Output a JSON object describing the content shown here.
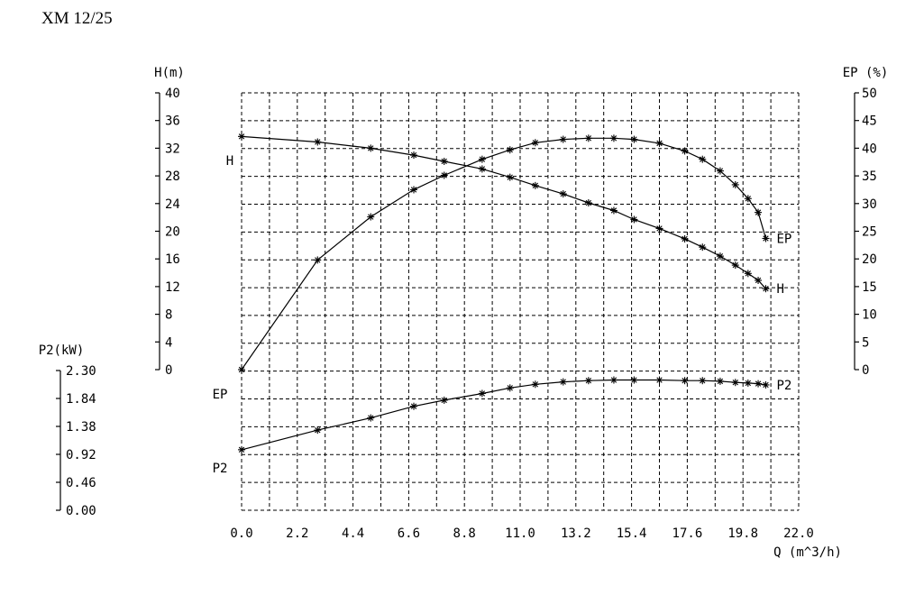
{
  "title": "XM 12/25",
  "chart_data": {
    "type": "line",
    "title": "XM 12/25",
    "xlabel": "Q (m^3/h)",
    "x_ticks": [
      "0.0",
      "2.2",
      "4.4",
      "6.6",
      "8.8",
      "11.0",
      "13.2",
      "15.4",
      "17.6",
      "19.8",
      "22.0"
    ],
    "xlim": [
      0,
      22
    ],
    "axes": {
      "H": {
        "label": "H(m)",
        "ticks": [
          "40",
          "36",
          "32",
          "28",
          "24",
          "20",
          "16",
          "12",
          "8",
          "4",
          "0"
        ],
        "lim": [
          0,
          40
        ]
      },
      "EP": {
        "label": "EP (%)",
        "ticks": [
          "50",
          "45",
          "40",
          "35",
          "30",
          "25",
          "20",
          "15",
          "10",
          "5",
          "0"
        ],
        "lim": [
          0,
          50
        ]
      },
      "P2": {
        "label": "P2(kW)",
        "ticks": [
          "2.30",
          "1.84",
          "1.38",
          "0.92",
          "0.46",
          "0.00"
        ],
        "lim": [
          0,
          2.3
        ]
      }
    },
    "grid": true,
    "series": [
      {
        "name": "H",
        "axis": "H",
        "start_label": "H",
        "end_label": "H",
        "x": [
          0.0,
          3.0,
          5.1,
          6.8,
          8.0,
          9.5,
          10.6,
          11.6,
          12.7,
          13.7,
          14.7,
          15.5,
          16.5,
          17.5,
          18.2,
          18.9,
          19.5,
          20.0,
          20.4,
          20.7
        ],
        "y": [
          33.7,
          32.9,
          32.0,
          31.0,
          30.1,
          29.0,
          27.8,
          26.6,
          25.4,
          24.1,
          23.0,
          21.7,
          20.4,
          18.9,
          17.7,
          16.4,
          15.1,
          13.9,
          12.9,
          11.7
        ]
      },
      {
        "name": "EP",
        "axis": "EP",
        "start_label": "EP",
        "end_label": "EP",
        "x": [
          0.0,
          3.0,
          5.1,
          6.8,
          8.0,
          9.5,
          10.6,
          11.6,
          12.7,
          13.7,
          14.7,
          15.5,
          16.5,
          17.5,
          18.2,
          18.9,
          19.5,
          20.0,
          20.4,
          20.7
        ],
        "y": [
          0.0,
          19.8,
          27.6,
          32.5,
          35.1,
          38.0,
          39.7,
          41.0,
          41.6,
          41.8,
          41.8,
          41.6,
          40.9,
          39.5,
          38.0,
          35.9,
          33.4,
          30.9,
          28.4,
          23.7
        ]
      },
      {
        "name": "P2",
        "axis": "P2",
        "start_label": "P2",
        "end_label": "P2",
        "x": [
          0.0,
          3.0,
          5.1,
          6.8,
          8.0,
          9.5,
          10.6,
          11.6,
          12.7,
          13.7,
          14.7,
          15.5,
          16.5,
          17.5,
          18.2,
          18.9,
          19.5,
          20.0,
          20.4,
          20.7
        ],
        "y": [
          0.99,
          1.31,
          1.51,
          1.7,
          1.8,
          1.91,
          2.0,
          2.06,
          2.1,
          2.12,
          2.13,
          2.13,
          2.13,
          2.12,
          2.12,
          2.11,
          2.09,
          2.08,
          2.07,
          2.05
        ]
      }
    ]
  }
}
